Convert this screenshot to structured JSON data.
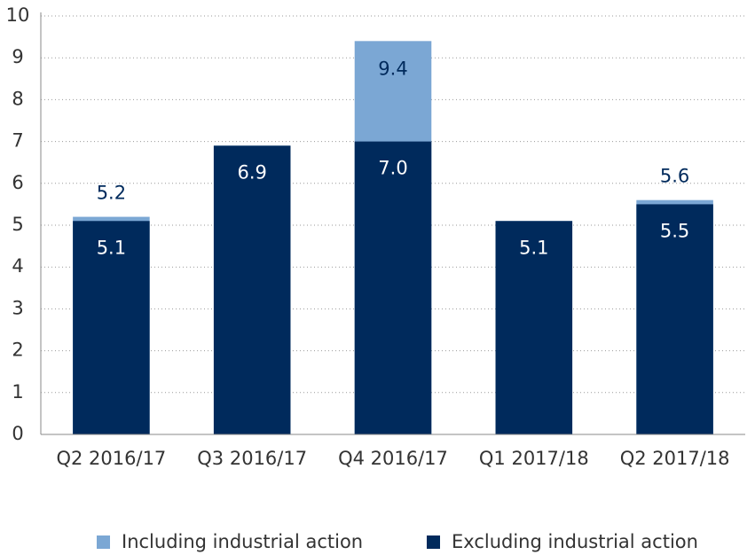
{
  "chart_data": {
    "type": "bar",
    "overlap": true,
    "categories": [
      "Q2 2016/17",
      "Q3 2016/17",
      "Q4 2016/17",
      "Q1 2017/18",
      "Q2 2017/18"
    ],
    "series": [
      {
        "name": "Including industrial action",
        "color": "#7ba7d4",
        "values": [
          5.2,
          6.9,
          9.4,
          5.1,
          5.6
        ],
        "value_labels": [
          "5.2",
          null,
          "9.4",
          null,
          "5.6"
        ]
      },
      {
        "name": "Excluding industrial action",
        "color": "#002a5c",
        "values": [
          5.1,
          6.9,
          7.0,
          5.1,
          5.5
        ],
        "value_labels": [
          "5.1",
          "6.9",
          "7.0",
          "5.1",
          "5.5"
        ]
      }
    ],
    "ylim": [
      0,
      10
    ],
    "yticks": [
      0,
      1,
      2,
      3,
      4,
      5,
      6,
      7,
      8,
      9,
      10
    ],
    "grid": true,
    "legend": "bottom"
  }
}
